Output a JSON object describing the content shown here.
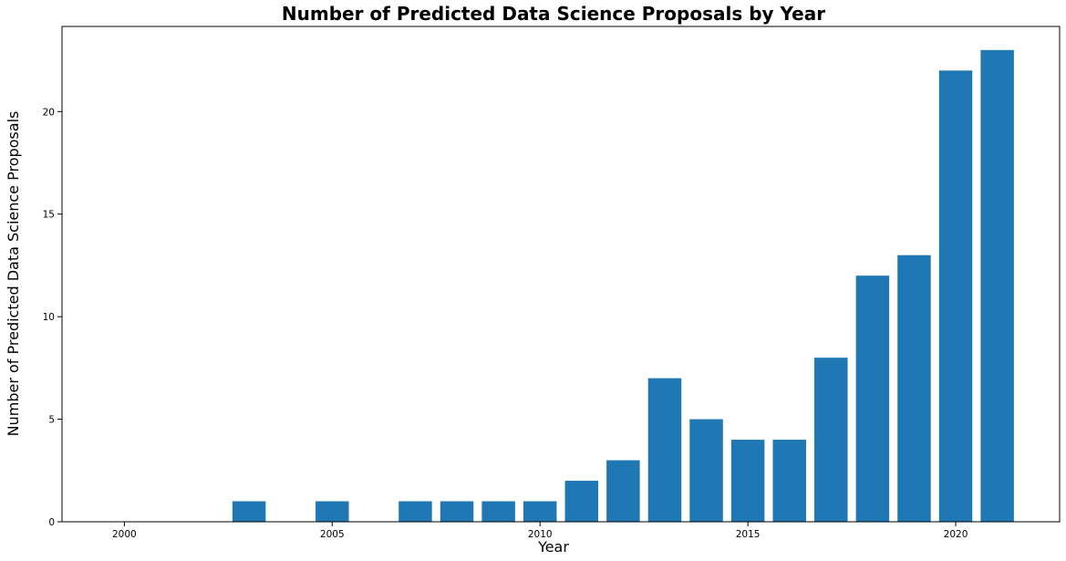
{
  "chart_data": {
    "type": "bar",
    "title": "Number of Predicted Data Science Proposals by Year",
    "xlabel": "Year",
    "ylabel": "Number of Predicted Data Science Proposals",
    "x": [
      2003,
      2005,
      2007,
      2008,
      2009,
      2010,
      2011,
      2012,
      2013,
      2014,
      2015,
      2016,
      2017,
      2018,
      2019,
      2020,
      2021
    ],
    "values": [
      1,
      1,
      1,
      1,
      1,
      1,
      2,
      3,
      7,
      5,
      4,
      4,
      8,
      12,
      13,
      22,
      23
    ],
    "xlim": [
      1998.5,
      2022.5
    ],
    "ylim": [
      0,
      24.15
    ],
    "xticks": [
      2000,
      2005,
      2010,
      2015,
      2020
    ],
    "yticks": [
      0,
      5,
      10,
      15,
      20
    ],
    "bar_width": 0.8,
    "bar_color": "#1f77b4",
    "grid": false,
    "legend": "none"
  }
}
